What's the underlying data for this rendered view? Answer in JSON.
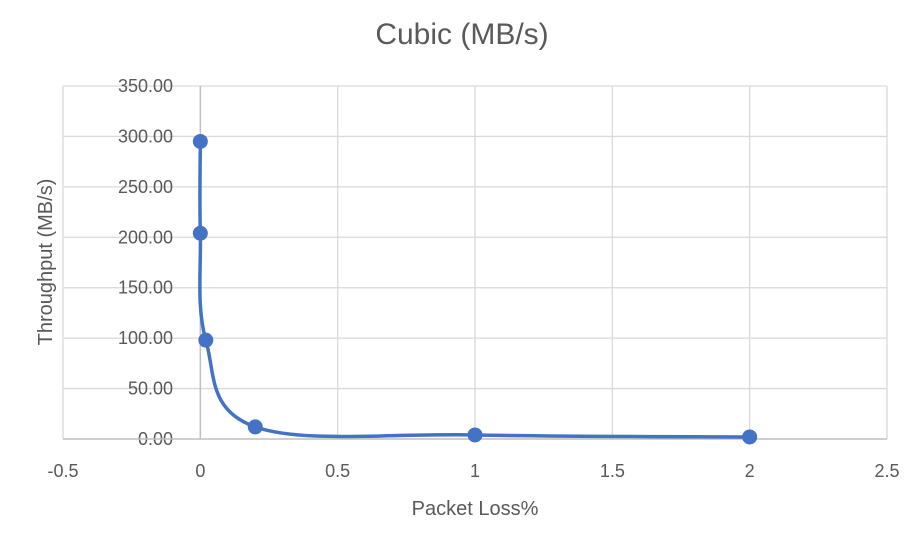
{
  "chart_data": {
    "type": "scatter",
    "title": "Cubic (MB/s)",
    "xlabel": "Packet Loss%",
    "ylabel": "Throughput (MB/s)",
    "xlim": [
      -0.5,
      2.5
    ],
    "ylim": [
      0,
      350
    ],
    "x_ticks": [
      "-0.5",
      "0",
      "0.5",
      "1",
      "1.5",
      "2",
      "2.5"
    ],
    "y_ticks": [
      "0.00",
      "50.00",
      "100.00",
      "150.00",
      "200.00",
      "250.00",
      "300.00",
      "350.00"
    ],
    "grid": true,
    "legend": "none",
    "smooth_line": true,
    "series": [
      {
        "color": "#4472c4",
        "x": [
          0,
          0,
          0.02,
          0.2,
          1,
          2
        ],
        "y": [
          295,
          204,
          98,
          12,
          4,
          2
        ]
      }
    ]
  }
}
